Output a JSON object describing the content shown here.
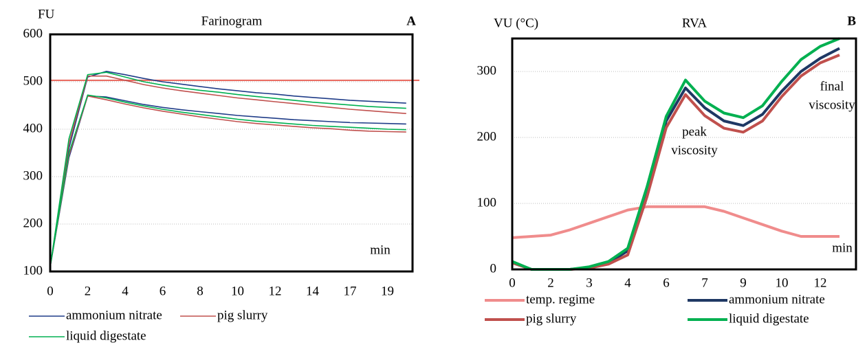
{
  "chart_data": [
    {
      "type": "line",
      "title": "Farinogram",
      "y_label": "FU",
      "panel": "A",
      "x_label": "min",
      "categories": [
        "0",
        null,
        "2",
        null,
        "4",
        null,
        "6",
        null,
        "8",
        null,
        "10",
        null,
        "12",
        null,
        "14",
        null,
        "17",
        null,
        "19",
        null
      ],
      "ylim": [
        100,
        600
      ],
      "yticks": [
        100,
        200,
        300,
        400,
        500,
        600
      ],
      "grid": true,
      "reference_line": 503,
      "reference_color": "#e8645a",
      "series": [
        {
          "name": "ammonium nitrate",
          "color": "#1f3c88",
          "values": [
            110,
            360,
            510,
            522,
            515,
            507,
            500,
            495,
            490,
            485,
            481,
            477,
            474,
            470,
            467,
            464,
            461,
            459,
            457,
            455
          ],
          "values_lower": [
            110,
            340,
            470,
            468,
            460,
            452,
            446,
            441,
            437,
            433,
            429,
            426,
            423,
            420,
            418,
            416,
            414,
            413,
            412,
            411
          ]
        },
        {
          "name": "pig slurry",
          "color": "#c0504d",
          "values": [
            110,
            370,
            512,
            512,
            503,
            494,
            487,
            481,
            476,
            471,
            466,
            462,
            458,
            454,
            450,
            446,
            442,
            439,
            436,
            433
          ],
          "values_lower": [
            110,
            345,
            470,
            462,
            453,
            445,
            438,
            432,
            426,
            421,
            416,
            412,
            409,
            406,
            403,
            401,
            398,
            396,
            395,
            394
          ]
        },
        {
          "name": "liquid digestate",
          "color": "#00b050",
          "values": [
            110,
            380,
            515,
            520,
            510,
            500,
            493,
            487,
            482,
            478,
            473,
            469,
            465,
            461,
            457,
            454,
            451,
            448,
            446,
            444
          ],
          "values_lower": [
            110,
            350,
            472,
            466,
            457,
            449,
            442,
            436,
            431,
            426,
            421,
            417,
            414,
            411,
            408,
            406,
            404,
            402,
            400,
            399
          ]
        }
      ]
    },
    {
      "type": "line",
      "title": "RVA",
      "y_label": "VU (°C)",
      "panel": "B",
      "x_label": "min",
      "categories": [
        "0",
        null,
        "2",
        null,
        "3",
        null,
        "4",
        null,
        "6",
        null,
        "7",
        null,
        "9",
        null,
        "10",
        null,
        "12",
        null
      ],
      "ylim": [
        0,
        350
      ],
      "yticks": [
        0,
        100,
        200,
        300
      ],
      "grid": true,
      "annotations": [
        [
          "peak",
          "viscosity"
        ],
        [
          "final",
          "viscosity"
        ]
      ],
      "series": [
        {
          "name": "temp. regime",
          "color": "#f08c8c",
          "values": [
            48,
            50,
            52,
            60,
            70,
            80,
            90,
            95,
            95,
            95,
            95,
            88,
            78,
            68,
            58,
            50,
            50,
            50
          ]
        },
        {
          "name": "ammonium nitrate",
          "color": "#1f3864",
          "values": [
            10,
            0,
            0,
            0,
            3,
            10,
            28,
            120,
            225,
            275,
            245,
            225,
            218,
            235,
            270,
            300,
            320,
            335
          ]
        },
        {
          "name": "pig slurry",
          "color": "#c0504d",
          "values": [
            10,
            0,
            0,
            0,
            2,
            8,
            22,
            110,
            215,
            265,
            233,
            214,
            208,
            225,
            262,
            293,
            313,
            325
          ]
        },
        {
          "name": "liquid digestate",
          "color": "#00b050",
          "values": [
            12,
            0,
            0,
            0,
            4,
            12,
            32,
            125,
            232,
            287,
            255,
            237,
            230,
            248,
            285,
            318,
            338,
            350
          ]
        }
      ]
    }
  ]
}
